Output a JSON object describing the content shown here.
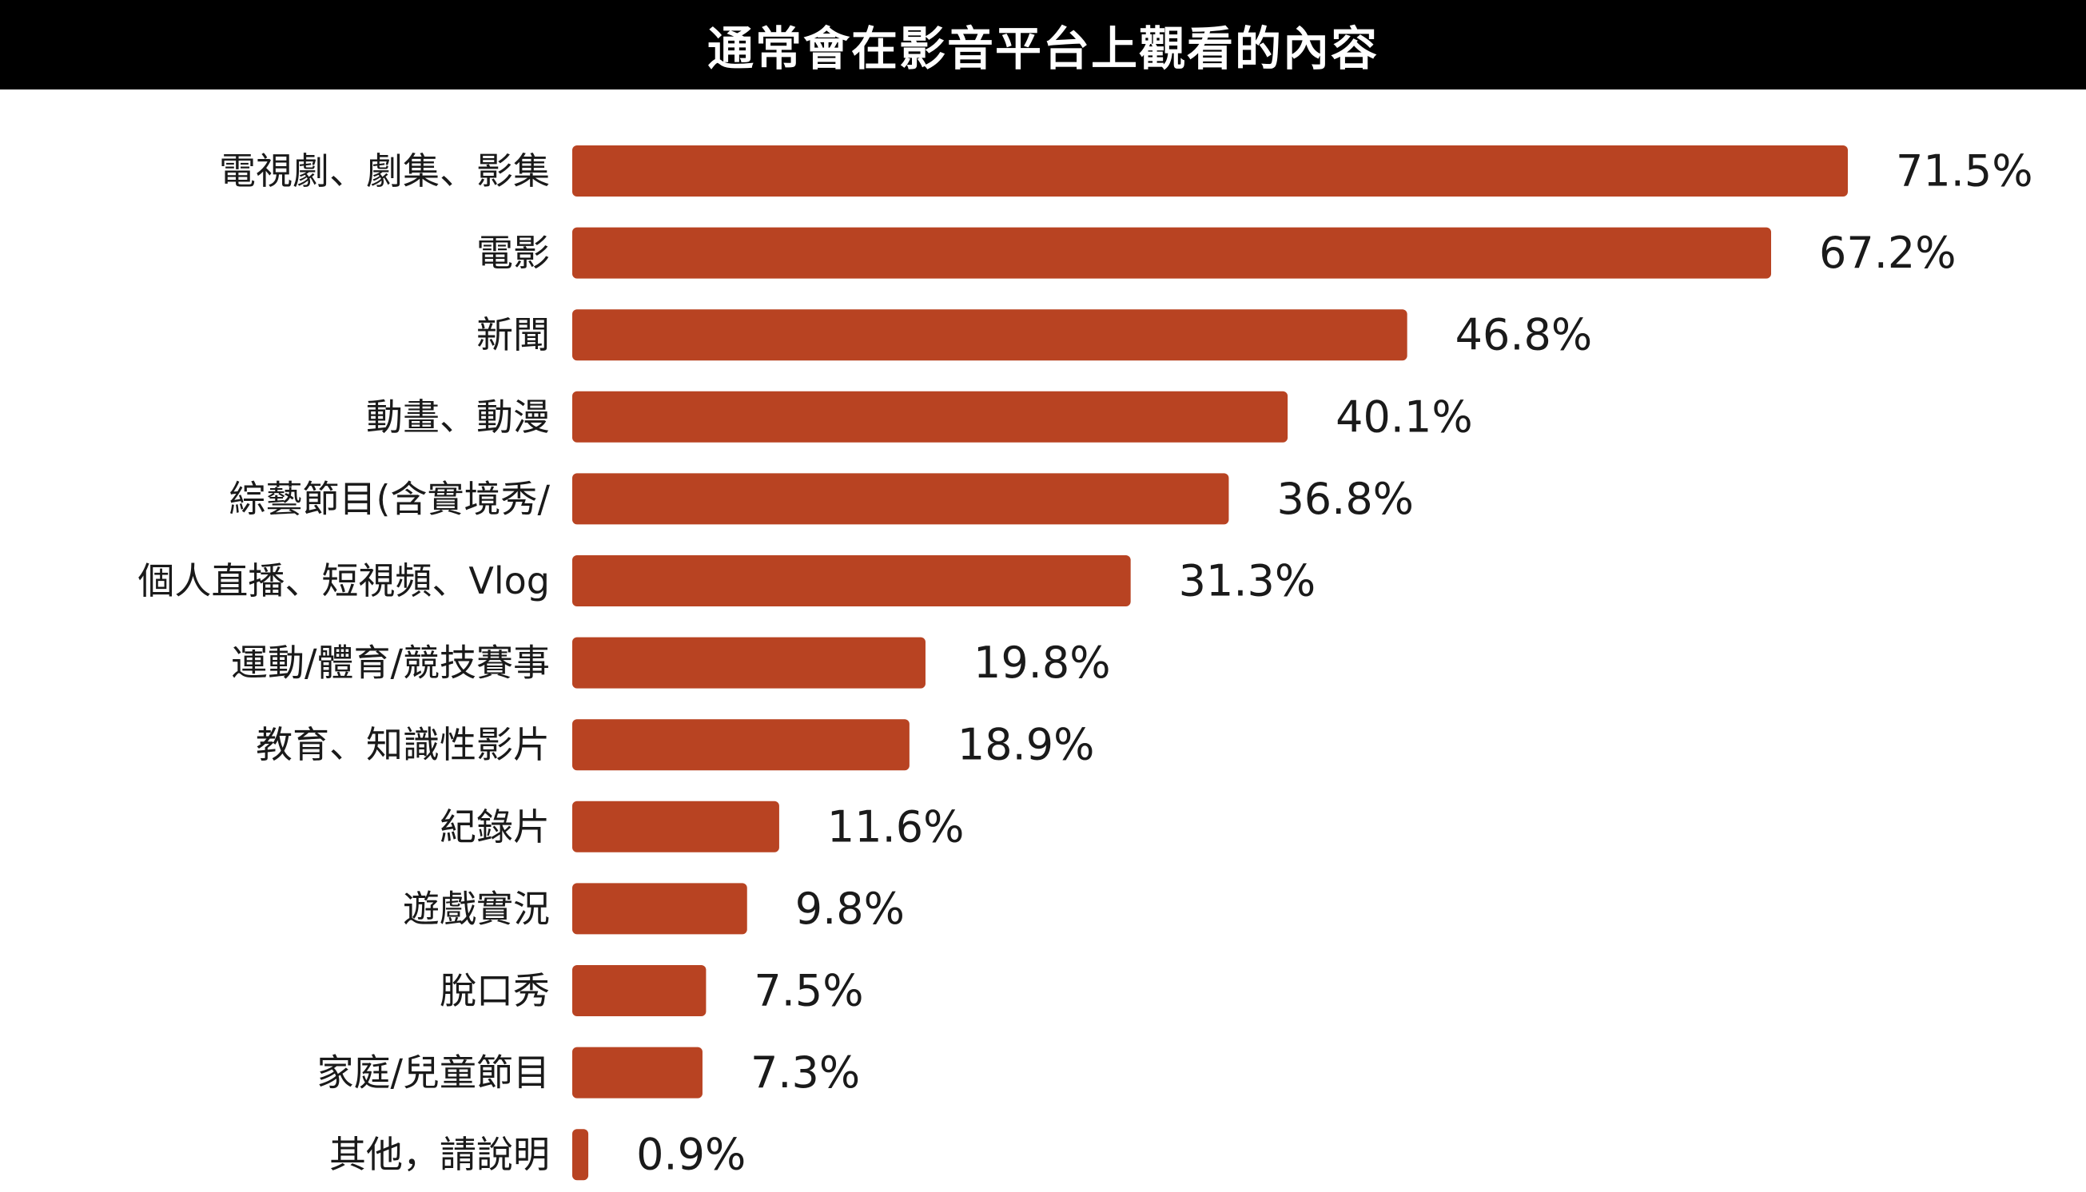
{
  "colors": {
    "bar": "#b84322",
    "title_background": "#000000",
    "title_text": "#ffffff"
  },
  "chart_data": {
    "type": "bar",
    "orientation": "horizontal",
    "title": "通常會在影音平台上觀看的內容",
    "categories": [
      "電視劇、劇集、影集",
      "電影",
      "新聞",
      "動畫、動漫",
      "綜藝節目(含實境秀/",
      "個人直播、短視頻、Vlog",
      "運動/體育/競技賽事",
      "教育、知識性影片",
      "紀錄片",
      "遊戲實況",
      "脫口秀",
      "家庭/兒童節目",
      "其他，請說明"
    ],
    "values": [
      71.5,
      67.2,
      46.8,
      40.1,
      36.8,
      31.3,
      19.8,
      18.9,
      11.6,
      9.8,
      7.5,
      7.3,
      0.9
    ],
    "value_labels": [
      "71.5%",
      "67.2%",
      "46.8%",
      "40.1%",
      "36.8%",
      "31.3%",
      "19.8%",
      "18.9%",
      "11.6%",
      "9.8%",
      "7.5%",
      "7.3%",
      "0.9%"
    ],
    "unit": "%",
    "xlim": [
      0,
      71.5
    ],
    "grid": false,
    "legend": "none"
  }
}
